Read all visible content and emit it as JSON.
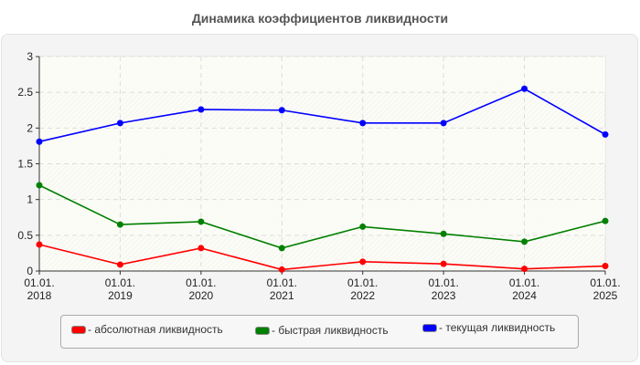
{
  "title": "Динамика коэффициентов ликвидности",
  "chart_data": {
    "type": "line",
    "title": "Динамика коэффициентов ликвидности",
    "xlabel": "",
    "ylabel": "",
    "categories": [
      "01.01.2018",
      "01.01.2019",
      "01.01.2020",
      "01.01.2021",
      "01.01.2022",
      "01.01.2023",
      "01.01.2024",
      "01.01.2025"
    ],
    "x_tick_labels": [
      [
        "01.01.",
        "2018"
      ],
      [
        "01.01.",
        "2019"
      ],
      [
        "01.01.",
        "2020"
      ],
      [
        "01.01.",
        "2021"
      ],
      [
        "01.01.",
        "2022"
      ],
      [
        "01.01.",
        "2023"
      ],
      [
        "01.01.",
        "2024"
      ],
      [
        "01.01.",
        "2025"
      ]
    ],
    "y_ticks": [
      "0",
      "0.5",
      "1",
      "1.5",
      "2",
      "2.5",
      "3"
    ],
    "ylim": [
      0,
      3
    ],
    "grid": true,
    "legend_position": "bottom",
    "series": [
      {
        "name": "- абсолютная ликвидность",
        "color": "#ff0000",
        "values": [
          0.37,
          0.09,
          0.32,
          0.02,
          0.13,
          0.1,
          0.03,
          0.07
        ]
      },
      {
        "name": "- быстрая ликвидность",
        "color": "#008000",
        "values": [
          1.2,
          0.65,
          0.69,
          0.32,
          0.62,
          0.52,
          0.41,
          0.7
        ]
      },
      {
        "name": "- текущая ликвидность",
        "color": "#0000ff",
        "values": [
          1.81,
          2.07,
          2.26,
          2.25,
          2.07,
          2.07,
          2.55,
          1.91
        ]
      }
    ]
  },
  "legend": {
    "items": [
      {
        "label": "- абсолютная ликвидность",
        "color": "#ff0000"
      },
      {
        "label": "- быстрая ликвидность",
        "color": "#008000"
      },
      {
        "label": "- текущая ликвидность",
        "color": "#0000ff"
      }
    ]
  }
}
